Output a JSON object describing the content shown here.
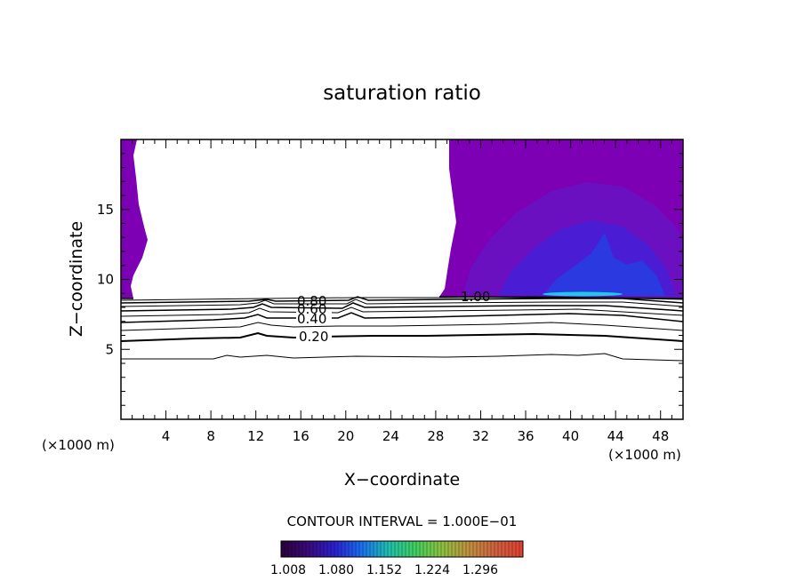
{
  "chart_data": {
    "type": "contour",
    "title": "saturation ratio",
    "xlabel": "X−coordinate",
    "ylabel": "Z−coordinate",
    "x_unit_left": "(×1000 m)",
    "x_unit_right": "(×1000 m)",
    "xlim": [
      0,
      50
    ],
    "ylim": [
      0,
      20
    ],
    "x_ticks": [
      4,
      8,
      12,
      16,
      20,
      24,
      28,
      32,
      36,
      40,
      44,
      48
    ],
    "y_ticks": [
      5,
      10,
      15
    ],
    "contour_levels": [
      0.1,
      0.2,
      0.3,
      0.4,
      0.5,
      0.6,
      0.7,
      0.8,
      0.9,
      1.0
    ],
    "contour_labels": [
      {
        "text": "0.20",
        "x": 16,
        "z": 5.9
      },
      {
        "text": "0.40",
        "x": 16,
        "z": 7.1
      },
      {
        "text": "0.60",
        "x": 16,
        "z": 7.9
      },
      {
        "text": "0.80",
        "x": 16,
        "z": 8.4
      },
      {
        "text": "1.00",
        "x": 31.5,
        "z": 8.9
      }
    ],
    "contour_interval_text": "CONTOUR INTERVAL = 1.000E−01",
    "colorbar": {
      "ticks": [
        "1.008",
        "1.080",
        "1.152",
        "1.224",
        "1.296"
      ],
      "colors": [
        "#2a003a",
        "#3a0a7a",
        "#2a20d0",
        "#1a70f0",
        "#20c0b0",
        "#40d060",
        "#90c040",
        "#c09040",
        "#d06040",
        "#e04030"
      ]
    },
    "fill_colors": {
      "base": "#7e00b4",
      "mid": "#6a10c0",
      "core": "#4a1cd4",
      "peak": "#2a3ae0",
      "max": "#20c8e8"
    }
  }
}
